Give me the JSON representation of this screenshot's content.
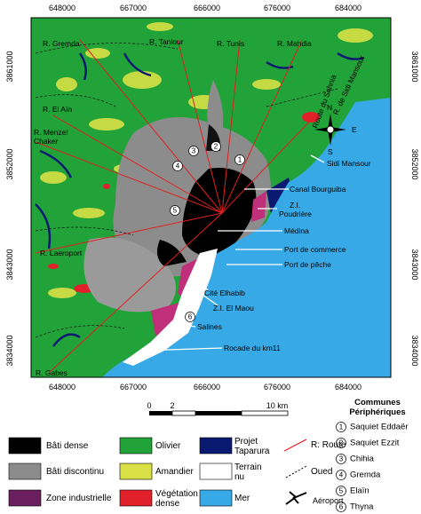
{
  "map": {
    "x_coords_top": [
      "648000",
      "667000",
      "666000",
      "676000",
      "684000"
    ],
    "x_coords_bottom": [
      "648000",
      "667000",
      "666000",
      "676000",
      "684000"
    ],
    "y_coords_left": [
      "3861000",
      "3852000",
      "3843000",
      "3834000"
    ],
    "y_coords_right": [
      "3861000",
      "3852000",
      "3843000",
      "3834000"
    ],
    "place_labels": [
      "R. Gremda",
      "R. Tanlour",
      "R. Tunis",
      "R. Mahdia",
      "R. El Aïn",
      "R. Menzel",
      "Chaker",
      "Route du Sahnia",
      "R. de Sidi Mansour",
      "Sidi Mansour",
      "Canal Bourguiba",
      "Z.I.",
      "Poudrière",
      "Médina",
      "Port de commerce",
      "Port de pêche",
      "Cité Elhabib",
      "Z.I. El Maou",
      "Salines",
      "Rocade du km11",
      "R. Laeroport",
      "R. Gabes"
    ],
    "compass": [
      "N",
      "E",
      "S"
    ],
    "commune_markers": [
      "1",
      "2",
      "3",
      "4",
      "5",
      "6"
    ]
  },
  "scale_bar": {
    "labels": [
      "0",
      "2",
      "10 km"
    ]
  },
  "legend": {
    "items": [
      "Bâti dense",
      "Bâti discontinu",
      "Zone industrielle",
      "Olivier",
      "Amandier",
      "Végétation dense",
      "Projet Taparura",
      "Terrain nu",
      "Mer",
      "R: Route",
      "Oued",
      "Aéroport"
    ]
  },
  "communes": {
    "title": "Communes Périphériques",
    "entries": [
      {
        "number": "1",
        "name": "Saquiet Eddaër"
      },
      {
        "number": "2",
        "name": "Saquiet Ezzit"
      },
      {
        "number": "3",
        "name": "Chihia"
      },
      {
        "number": "4",
        "name": "Gremda"
      },
      {
        "number": "5",
        "name": "Elaïn"
      },
      {
        "number": "6",
        "name": "Thyna"
      }
    ]
  }
}
